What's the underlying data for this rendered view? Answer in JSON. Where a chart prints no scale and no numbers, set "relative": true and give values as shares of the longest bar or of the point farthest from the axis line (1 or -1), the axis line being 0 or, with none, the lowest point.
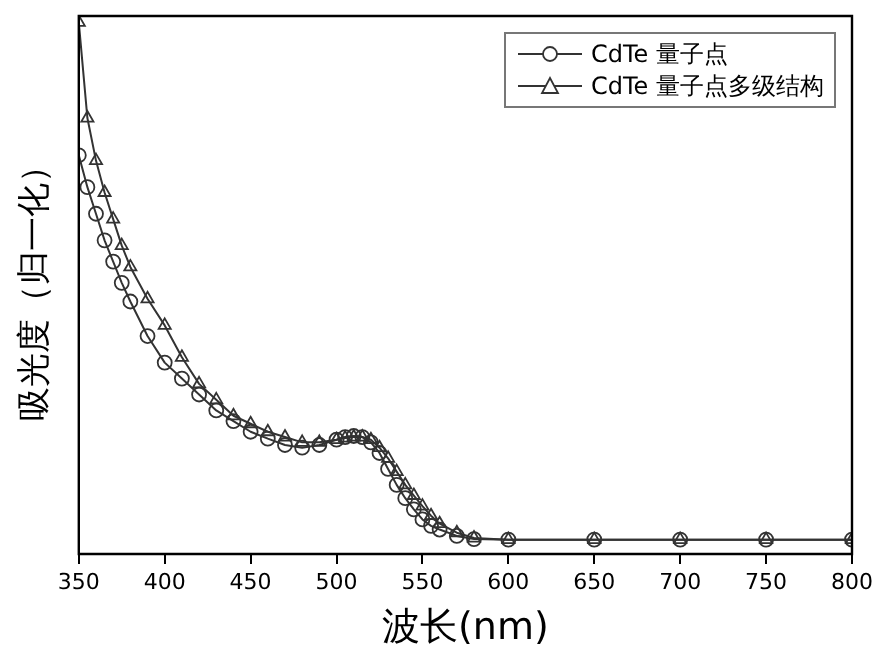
{
  "chart_data": {
    "type": "line",
    "xlabel": "波长(nm)",
    "ylabel": "吸光度（归一化）",
    "relative": true,
    "xlim": [
      350,
      800
    ],
    "xticks": [
      350,
      400,
      450,
      500,
      550,
      600,
      650,
      700,
      750,
      800
    ],
    "tick_labels": "x",
    "legend": "top right",
    "grid": false,
    "series": [
      {
        "name": "CdTe 量子点",
        "color": "#333333",
        "marker": "circle",
        "x": [
          350,
          355,
          360,
          365,
          370,
          375,
          380,
          390,
          400,
          410,
          420,
          430,
          440,
          450,
          460,
          470,
          480,
          490,
          500,
          505,
          510,
          515,
          520,
          525,
          530,
          535,
          540,
          545,
          550,
          555,
          560,
          570,
          580,
          600,
          650,
          700,
          750,
          800
        ],
        "values": [
          0.75,
          0.69,
          0.64,
          0.59,
          0.55,
          0.51,
          0.475,
          0.41,
          0.36,
          0.33,
          0.3,
          0.27,
          0.25,
          0.23,
          0.217,
          0.205,
          0.2,
          0.205,
          0.215,
          0.22,
          0.222,
          0.22,
          0.21,
          0.19,
          0.16,
          0.13,
          0.105,
          0.084,
          0.065,
          0.053,
          0.046,
          0.034,
          0.028,
          0.027,
          0.027,
          0.027,
          0.027,
          0.027
        ]
      },
      {
        "name": "CdTe 量子点多级结构",
        "color": "#333333",
        "marker": "triangle",
        "x": [
          350,
          355,
          360,
          365,
          370,
          375,
          380,
          390,
          400,
          410,
          420,
          430,
          440,
          450,
          460,
          470,
          480,
          490,
          500,
          505,
          510,
          515,
          520,
          525,
          530,
          535,
          540,
          545,
          550,
          555,
          560,
          570,
          580,
          600,
          650,
          700,
          750,
          800
        ],
        "values": [
          1.0,
          0.82,
          0.74,
          0.68,
          0.63,
          0.58,
          0.54,
          0.48,
          0.43,
          0.37,
          0.32,
          0.29,
          0.26,
          0.245,
          0.23,
          0.22,
          0.21,
          0.21,
          0.215,
          0.218,
          0.22,
          0.22,
          0.215,
          0.2,
          0.18,
          0.155,
          0.13,
          0.11,
          0.09,
          0.072,
          0.057,
          0.04,
          0.03,
          0.027,
          0.027,
          0.027,
          0.027,
          0.027
        ]
      }
    ]
  }
}
